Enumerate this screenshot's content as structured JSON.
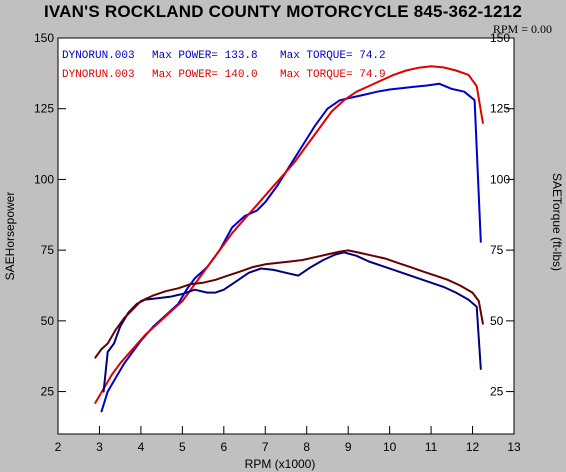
{
  "header": {
    "title": "IVAN'S ROCKLAND COUNTY MOTORCYCLE 845-362-1212",
    "rpm_readout": "RPM = 0.00"
  },
  "legend": [
    {
      "run": "DYNORUN.003",
      "power_label": "Max POWER= 133.8",
      "torque_label": "Max TORQUE= 74.2",
      "color": "#0000cc"
    },
    {
      "run": "DYNORUN.003",
      "power_label": "Max POWER= 140.0",
      "torque_label": "Max TORQUE= 74.9",
      "color": "#e00000"
    }
  ],
  "chart_data": {
    "type": "line",
    "xlabel": "RPM (x1000)",
    "ylabel_left": "SAEHorsepower",
    "ylabel_right": "SAETorque (ft-lbs)",
    "xlim": [
      2,
      13
    ],
    "ylim": [
      10,
      150
    ],
    "xticks": [
      2,
      3,
      4,
      5,
      6,
      7,
      8,
      9,
      10,
      11,
      12,
      13
    ],
    "yticks": [
      25,
      50,
      75,
      100,
      125,
      150
    ],
    "grid": false,
    "series": [
      {
        "name": "DYNORUN.003",
        "kind": "power",
        "color": "#0000cc",
        "x": [
          3.05,
          3.2,
          3.4,
          3.6,
          3.8,
          4.0,
          4.3,
          4.6,
          4.9,
          5.1,
          5.3,
          5.6,
          5.9,
          6.2,
          6.5,
          6.8,
          7.0,
          7.3,
          7.6,
          7.9,
          8.2,
          8.5,
          8.8,
          9.1,
          9.4,
          9.7,
          10.0,
          10.3,
          10.6,
          10.9,
          11.2,
          11.5,
          11.8,
          12.05,
          12.2
        ],
        "y": [
          18,
          25,
          30,
          35,
          39,
          43,
          48,
          52,
          56,
          61,
          65,
          69,
          75,
          83,
          87,
          89,
          92,
          98,
          105,
          112,
          119,
          125,
          128,
          129,
          130,
          131,
          131.8,
          132.3,
          132.8,
          133.2,
          133.8,
          132,
          131,
          128,
          78
        ]
      },
      {
        "name": "DYNORUN.003",
        "kind": "power",
        "color": "#e00000",
        "x": [
          2.9,
          3.1,
          3.3,
          3.5,
          3.8,
          4.1,
          4.4,
          4.7,
          5.0,
          5.3,
          5.6,
          5.9,
          6.2,
          6.5,
          6.8,
          7.1,
          7.4,
          7.7,
          8.0,
          8.3,
          8.6,
          8.9,
          9.2,
          9.5,
          9.8,
          10.1,
          10.4,
          10.7,
          11.0,
          11.3,
          11.6,
          11.9,
          12.1,
          12.25
        ],
        "y": [
          21,
          26,
          31,
          35,
          40,
          45,
          49,
          53,
          57,
          63,
          69,
          75,
          81,
          86,
          91,
          96,
          101,
          106,
          112,
          118,
          124,
          128,
          131,
          133,
          135,
          137,
          138.5,
          139.5,
          140,
          139.6,
          138.5,
          137,
          133,
          120
        ]
      },
      {
        "name": "DYNORUN.003",
        "kind": "torque",
        "color": "#000080",
        "x": [
          3.1,
          3.2,
          3.35,
          3.5,
          3.7,
          3.9,
          4.1,
          4.4,
          4.7,
          5.0,
          5.3,
          5.6,
          5.8,
          6.0,
          6.3,
          6.6,
          6.9,
          7.2,
          7.5,
          7.8,
          8.1,
          8.4,
          8.7,
          8.9,
          9.2,
          9.5,
          9.8,
          10.1,
          10.4,
          10.7,
          11.0,
          11.3,
          11.6,
          11.9,
          12.1,
          12.2
        ],
        "y": [
          25,
          39,
          42,
          48,
          53,
          56,
          57.5,
          58,
          58.5,
          59.5,
          61,
          60,
          60,
          61,
          64,
          67,
          68.5,
          68,
          67,
          66,
          69,
          71.5,
          73.5,
          74.2,
          73,
          71,
          69.5,
          68,
          66.5,
          65,
          63.5,
          62,
          60,
          57.5,
          55,
          33
        ]
      },
      {
        "name": "DYNORUN.003",
        "kind": "torque",
        "color": "#660000",
        "x": [
          2.9,
          3.05,
          3.2,
          3.4,
          3.6,
          3.8,
          4.0,
          4.3,
          4.6,
          4.9,
          5.2,
          5.5,
          5.8,
          6.1,
          6.4,
          6.7,
          7.0,
          7.3,
          7.6,
          7.9,
          8.2,
          8.5,
          8.8,
          9.0,
          9.3,
          9.6,
          9.9,
          10.2,
          10.5,
          10.8,
          11.1,
          11.4,
          11.7,
          12.0,
          12.15,
          12.25
        ],
        "y": [
          37,
          40,
          42,
          47,
          51,
          54,
          57,
          59,
          60.5,
          61.5,
          63,
          63.5,
          64.5,
          66,
          67.5,
          69,
          70,
          70.5,
          71,
          71.5,
          72.5,
          73.5,
          74.5,
          74.9,
          74,
          73,
          72,
          70.5,
          69,
          67.5,
          66,
          64.5,
          62.5,
          60,
          57,
          49
        ]
      }
    ]
  }
}
